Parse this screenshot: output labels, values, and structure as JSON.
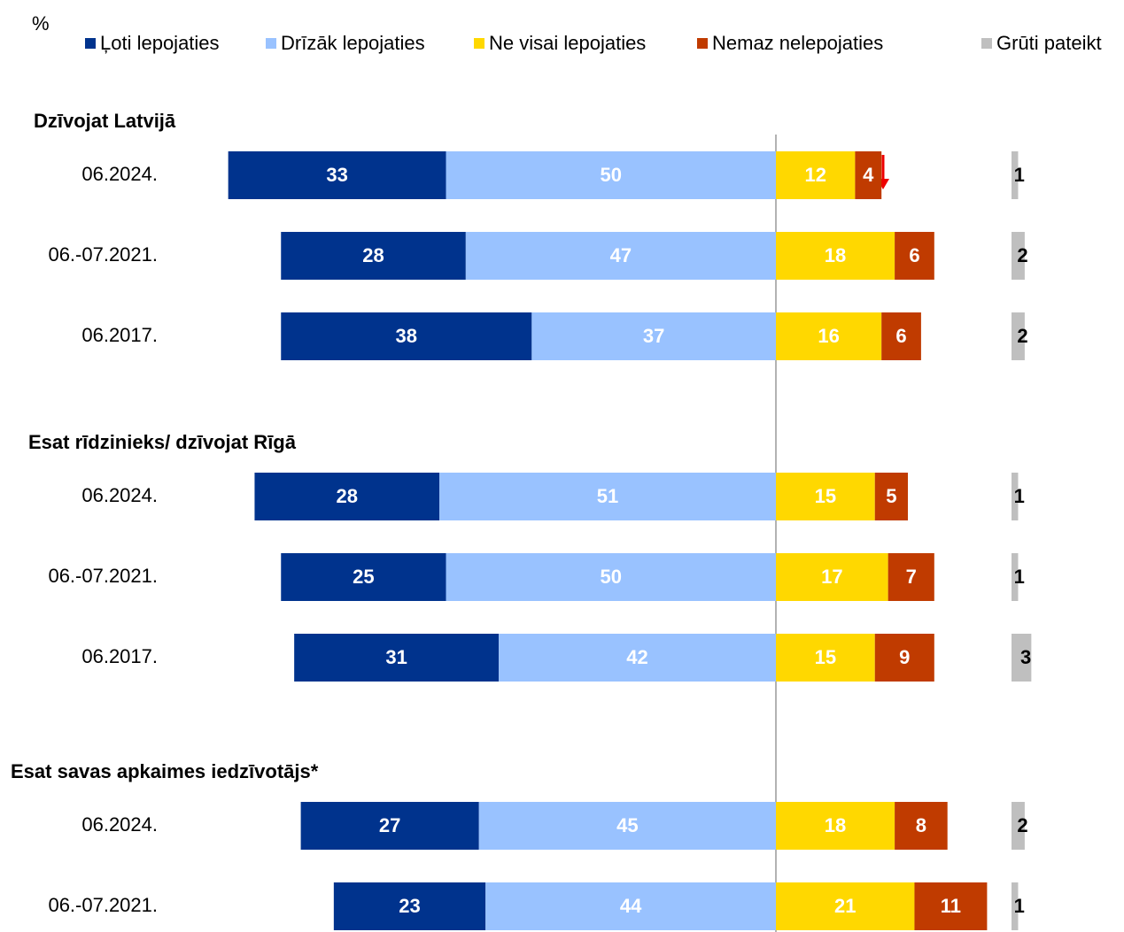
{
  "chart_data": {
    "type": "diverging_bar",
    "unit": "%",
    "series": [
      {
        "name": "Ļoti lepojaties",
        "color": "#00338d"
      },
      {
        "name": "Drīzāk lepojaties",
        "color": "#99c2ff"
      },
      {
        "name": "Ne visai lepojaties",
        "color": "#ffd800"
      },
      {
        "name": "Nemaz nelepojaties",
        "color": "#c03b00"
      },
      {
        "name": "Grūti pateikt",
        "color": "#bfbfbf"
      }
    ],
    "groups": [
      {
        "title": "Dzīvojat Latvijā",
        "rows": [
          {
            "label": "06.2024.",
            "values": [
              33,
              50,
              12,
              4,
              1
            ]
          },
          {
            "label": "06.-07.2021.",
            "values": [
              28,
              47,
              18,
              6,
              2
            ]
          },
          {
            "label": "06.2017.",
            "values": [
              38,
              37,
              16,
              6,
              2
            ]
          }
        ]
      },
      {
        "title": "Esat rīdzinieks/ dzīvojat Rīgā",
        "rows": [
          {
            "label": "06.2024.",
            "values": [
              28,
              51,
              15,
              5,
              1
            ]
          },
          {
            "label": "06.-07.2021.",
            "values": [
              25,
              50,
              17,
              7,
              1
            ]
          },
          {
            "label": "06.2017.",
            "values": [
              31,
              42,
              15,
              9,
              3
            ]
          }
        ]
      },
      {
        "title": "Esat savas apkaimes iedzīvotājs*",
        "rows": [
          {
            "label": "06.2024.",
            "values": [
              27,
              45,
              18,
              8,
              2
            ]
          },
          {
            "label": "06.-07.2021.",
            "values": [
              23,
              44,
              21,
              11,
              1
            ]
          }
        ]
      }
    ]
  }
}
